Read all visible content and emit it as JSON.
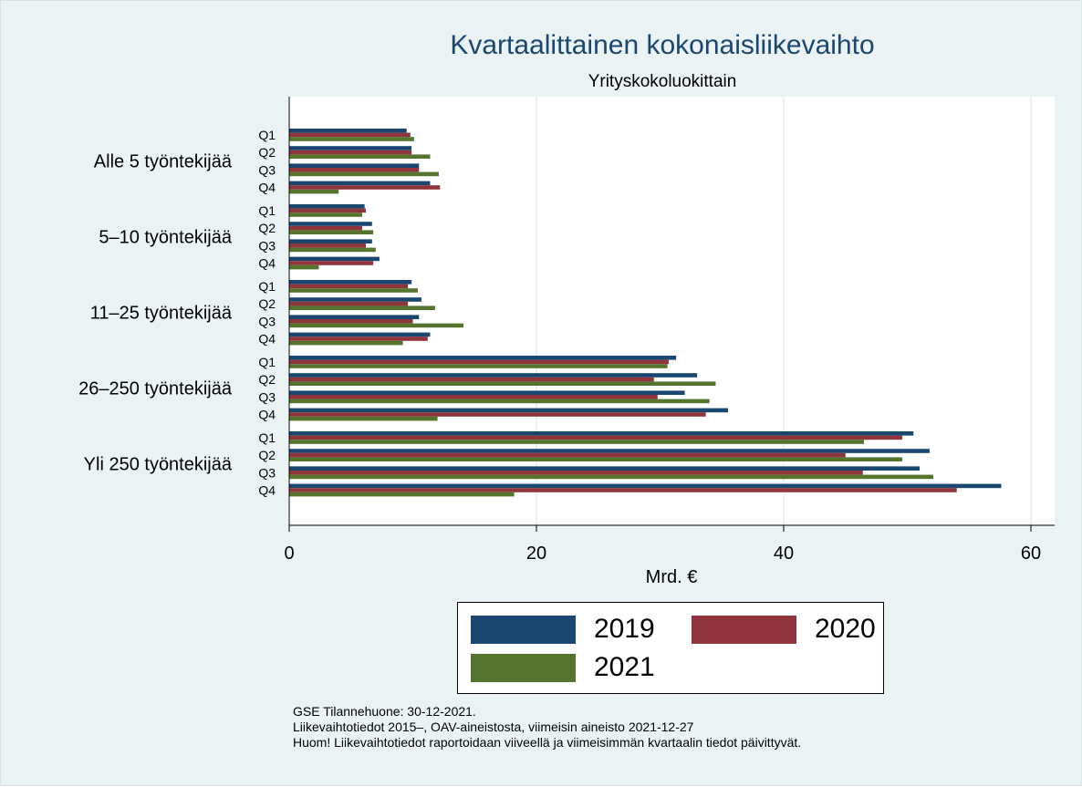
{
  "chart_data": {
    "type": "bar",
    "orientation": "horizontal",
    "title": "Kvartaalittainen kokonaisliikevaihto",
    "subtitle": "Yrityskokoluokittain",
    "xlabel": "Mrd. €",
    "xlim": [
      0,
      62
    ],
    "xticks": [
      "0",
      "20",
      "40",
      "60"
    ],
    "grid": true,
    "legend_position": "bottom",
    "groups": [
      "Alle 5 työntekijää",
      "5–10 työntekijää",
      "11–25 työntekijää",
      "26–250 työntekijää",
      "Yli 250 työntekijää"
    ],
    "quarters": [
      "Q1",
      "Q2",
      "Q3",
      "Q4"
    ],
    "series": [
      {
        "name": "2019",
        "color": "#1a476f",
        "values": [
          [
            9.5,
            9.9,
            10.5,
            11.4
          ],
          [
            6.1,
            6.7,
            6.7,
            7.3
          ],
          [
            9.9,
            10.7,
            10.5,
            11.4
          ],
          [
            31.3,
            33.0,
            32.0,
            35.5
          ],
          [
            50.5,
            51.8,
            51.0,
            57.6
          ]
        ]
      },
      {
        "name": "2020",
        "color": "#90353b",
        "values": [
          [
            9.8,
            9.9,
            10.5,
            12.2
          ],
          [
            6.2,
            5.9,
            6.2,
            6.8
          ],
          [
            9.6,
            9.6,
            10.0,
            11.2
          ],
          [
            30.7,
            29.5,
            29.8,
            33.7
          ],
          [
            49.6,
            45.0,
            46.4,
            54.0
          ]
        ]
      },
      {
        "name": "2021",
        "color": "#55752f",
        "values": [
          [
            10.1,
            11.4,
            12.1,
            4.0
          ],
          [
            5.9,
            6.8,
            7.0,
            2.4
          ],
          [
            10.4,
            11.8,
            14.1,
            9.2
          ],
          [
            30.6,
            34.5,
            34.0,
            12.0
          ],
          [
            46.5,
            49.6,
            52.1,
            18.2
          ]
        ]
      }
    ]
  },
  "notes": [
    "GSE Tilannehuone: 30-12-2021.",
    "Liikevaihtotiedot 2015–, OAV-aineistosta, viimeisin aineisto 2021-12-27",
    "Huom! Liikevaihtotiedot raportoidaan viiveellä ja viimeisimmän kvartaalin tiedot päivittyvät."
  ]
}
